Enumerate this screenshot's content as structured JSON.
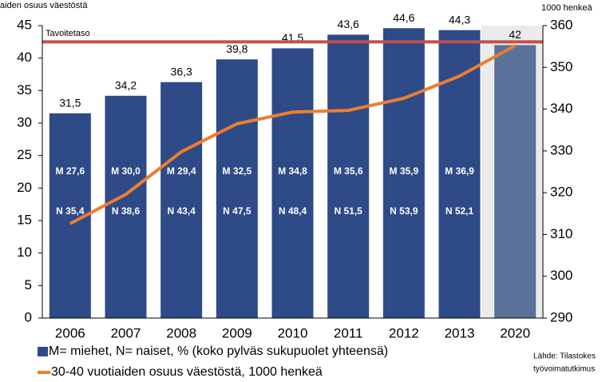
{
  "chart_data": {
    "type": "bar",
    "y_axis_label": "aiden osuus väestöstä",
    "y2_axis_label": "1000 henkeä",
    "categories": [
      "2006",
      "2007",
      "2008",
      "2009",
      "2010",
      "2011",
      "2012",
      "2013",
      "2020"
    ],
    "series": [
      {
        "name": "M= miehet, N= naiset, % (koko pylväs sukupuolet yhteensä)",
        "type": "bar",
        "color": "#2e4a87",
        "colors": [
          "#2e4a87",
          "#2e4a87",
          "#2e4a87",
          "#2e4a87",
          "#2e4a87",
          "#2e4a87",
          "#2e4a87",
          "#2e4a87",
          "#5a7199"
        ],
        "values": [
          31.5,
          34.2,
          36.3,
          39.8,
          41.5,
          43.6,
          44.6,
          44.3,
          42
        ],
        "value_labels": [
          "31,5",
          "34,2",
          "36,3",
          "39,8",
          "41,5",
          "43,6",
          "44,6",
          "44,3",
          "42"
        ],
        "m_labels": [
          "M 27,6",
          "M 30,0",
          "M 29,4",
          "M 32,5",
          "M 34,8",
          "M 35,6",
          "M 35,9",
          "M 36,9"
        ],
        "n_labels": [
          "N 35,4",
          "N 38,6",
          "N 43,4",
          "N 47,5",
          "N 48,4",
          "N 51,5",
          "N 53,9",
          "N 52,1"
        ]
      },
      {
        "name": "30-40 vuotiaiden osuus väestöstä, 1000 henkeä",
        "type": "line",
        "axis": "y2",
        "color": "#ed7d31",
        "values": [
          312.6,
          319.6,
          329.8,
          336.5,
          339.3,
          339.7,
          342.6,
          347.9,
          355.2
        ]
      }
    ],
    "reference_line": {
      "label": "Tavoitetaso",
      "value": 42.5,
      "color": "#c0504d"
    },
    "ylim": [
      0,
      45
    ],
    "yticks": [
      0,
      5,
      10,
      15,
      20,
      25,
      30,
      35,
      40,
      45
    ],
    "y2lim": [
      290,
      360
    ],
    "y2ticks": [
      290,
      300,
      310,
      320,
      330,
      340,
      350,
      360
    ],
    "source": [
      "Lähde: Tilastokes",
      "työvoimatutkimus"
    ]
  }
}
